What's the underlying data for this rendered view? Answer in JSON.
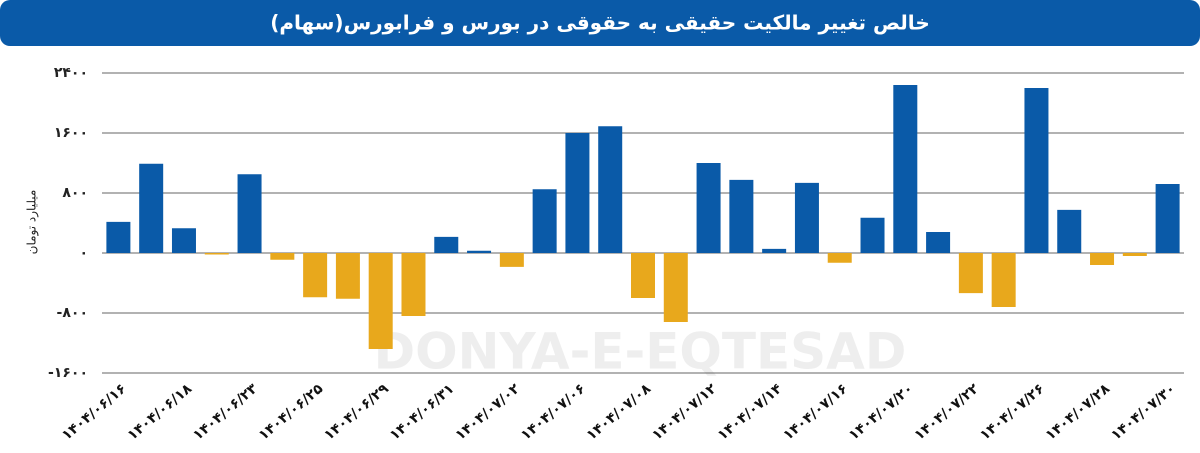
{
  "chart_data": {
    "type": "bar",
    "title": "خالص تغییر مالکیت حقیقی به حقوقی در بورس و فرابورس(سهام)",
    "y_label": "میلیارد تومان",
    "watermark": "DONYA-E-EQTESAD",
    "categories": [
      "۱۴۰۴/۰۶/۱۶",
      null,
      "۱۴۰۴/۰۶/۱۸",
      null,
      "۱۴۰۴/۰۶/۲۳",
      null,
      "۱۴۰۴/۰۶/۲۵",
      null,
      "۱۴۰۴/۰۶/۲۹",
      null,
      "۱۴۰۴/۰۶/۳۱",
      null,
      "۱۴۰۴/۰۷/۰۲",
      null,
      "۱۴۰۴/۰۷/۰۶",
      null,
      "۱۴۰۴/۰۷/۰۸",
      null,
      "۱۴۰۴/۰۷/۱۲",
      null,
      "۱۴۰۴/۰۷/۱۴",
      null,
      "۱۴۰۴/۰۷/۱۶",
      null,
      "۱۴۰۴/۰۷/۲۰",
      null,
      "۱۴۰۴/۰۷/۲۲",
      null,
      "۱۴۰۴/۰۷/۲۶",
      null,
      "۱۴۰۴/۰۷/۲۸",
      null,
      "۱۴۰۴/۰۷/۳۰"
    ],
    "values": [
      415,
      1190,
      330,
      -20,
      1050,
      -90,
      -590,
      -610,
      -1280,
      -840,
      215,
      30,
      -185,
      850,
      1600,
      1690,
      -600,
      -920,
      1200,
      975,
      55,
      935,
      -130,
      470,
      2240,
      280,
      -535,
      -720,
      2200,
      575,
      -160,
      -40,
      920
    ],
    "positive_color": "#0a5aa8",
    "negative_color": "#e8a81c",
    "ylim": [
      -1600,
      2400
    ],
    "yticks": [
      {
        "value": -1600,
        "label": "-۱۶۰۰"
      },
      {
        "value": -800,
        "label": "-۸۰۰"
      },
      {
        "value": 0,
        "label": "۰"
      },
      {
        "value": 800,
        "label": "۸۰۰"
      },
      {
        "value": 1600,
        "label": "۱۶۰۰"
      },
      {
        "value": 2400,
        "label": "۲۴۰۰"
      }
    ],
    "grid": true
  }
}
